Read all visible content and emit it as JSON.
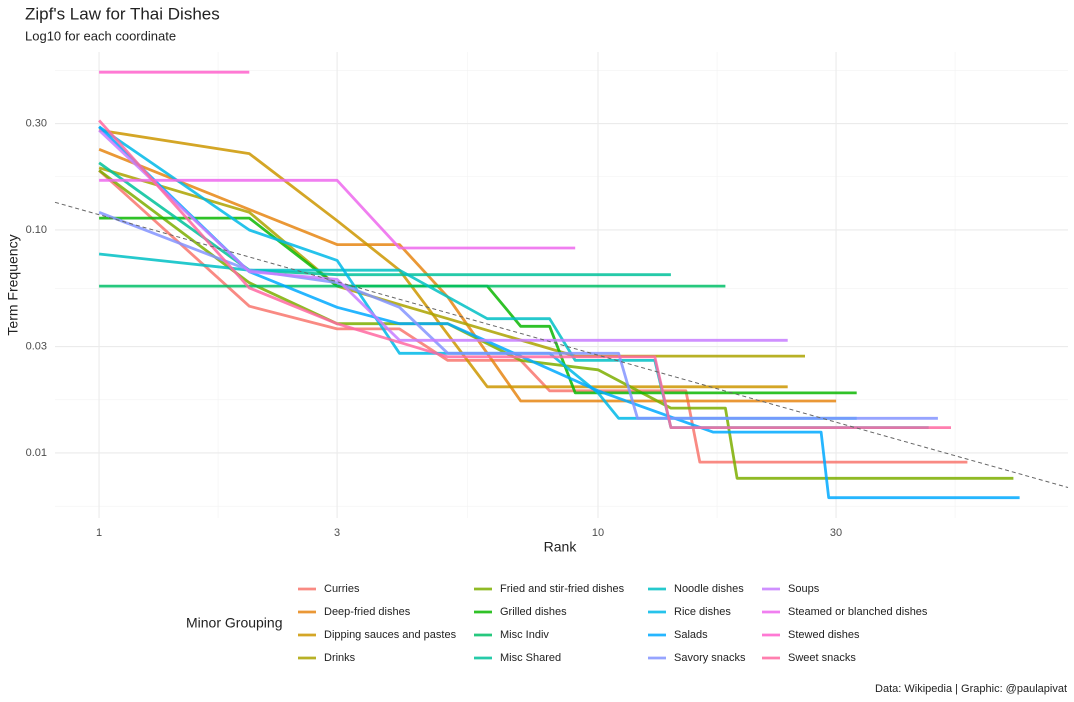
{
  "chart_data": {
    "type": "line",
    "title": "Zipf's Law for Thai Dishes",
    "subtitle": "Log10 for each coordinate",
    "x_label": "Rank",
    "y_label": "Term Frequency",
    "legend_title": "Minor Grouping",
    "caption": "Data: Wikipedia | Graphic: @paulapivat",
    "xscale": "log",
    "yscale": "log",
    "grid": true,
    "legend": "bottom",
    "xlim": [
      0.816,
      87.5
    ],
    "ylim": [
      0.00511,
      0.628
    ],
    "xticks": [
      1,
      3,
      10,
      30
    ],
    "yticks": [
      {
        "value": 0.01,
        "label": "0.01"
      },
      {
        "value": 0.03,
        "label": "0.03"
      },
      {
        "value": 0.1,
        "label": "0.10"
      },
      {
        "value": 0.3,
        "label": "0.30"
      }
    ],
    "reference_line": {
      "x": [
        0.816,
        87.5
      ],
      "values": [
        0.133,
        0.007
      ],
      "color": "#666666"
    },
    "series": [
      {
        "name": "Curries",
        "color": "#F8766D",
        "x": [
          1,
          2,
          3,
          4,
          5,
          7,
          8,
          15,
          16,
          55
        ],
        "values": [
          0.185,
          0.0455,
          0.036,
          0.036,
          0.026,
          0.026,
          0.019,
          0.019,
          0.0091,
          0.0091
        ]
      },
      {
        "name": "Deep-fried dishes",
        "color": "#E68613",
        "x": [
          1,
          3,
          4,
          5,
          7,
          30
        ],
        "values": [
          0.23,
          0.086,
          0.086,
          0.05,
          0.0171,
          0.0171
        ]
      },
      {
        "name": "Dipping sauces and pastes",
        "color": "#CD9600",
        "x": [
          1,
          2,
          3,
          4,
          6,
          24
        ],
        "values": [
          0.28,
          0.22,
          0.11,
          0.066,
          0.0198,
          0.0198
        ]
      },
      {
        "name": "Drinks",
        "color": "#ABA300",
        "x": [
          1,
          2,
          3,
          5,
          9,
          26
        ],
        "values": [
          0.19,
          0.12,
          0.056,
          0.04,
          0.0272,
          0.0272
        ]
      },
      {
        "name": "Fried and stir-fried dishes",
        "color": "#7CAE00",
        "x": [
          1,
          2,
          3,
          5,
          7,
          10,
          14,
          18,
          19,
          68
        ],
        "values": [
          0.185,
          0.058,
          0.038,
          0.038,
          0.026,
          0.0236,
          0.0159,
          0.0159,
          0.0077,
          0.0077
        ]
      },
      {
        "name": "Grilled dishes",
        "color": "#0CB702",
        "x": [
          1,
          2,
          3,
          6,
          7,
          8,
          9,
          33
        ],
        "values": [
          0.113,
          0.113,
          0.056,
          0.056,
          0.037,
          0.037,
          0.0186,
          0.0186
        ]
      },
      {
        "name": "Misc Indiv",
        "color": "#00BE67",
        "x": [
          1,
          18
        ],
        "values": [
          0.056,
          0.056
        ]
      },
      {
        "name": "Misc Shared",
        "color": "#00C19A",
        "x": [
          1,
          2,
          3,
          14
        ],
        "values": [
          0.2,
          0.066,
          0.063,
          0.063
        ]
      },
      {
        "name": "Noodle dishes",
        "color": "#00BFC4",
        "x": [
          1,
          2,
          4,
          6,
          8,
          9,
          13,
          14,
          46
        ],
        "values": [
          0.078,
          0.066,
          0.066,
          0.04,
          0.04,
          0.026,
          0.026,
          0.013,
          0.013
        ]
      },
      {
        "name": "Rice dishes",
        "color": "#00B8E7",
        "x": [
          1,
          2,
          3,
          4,
          8,
          10,
          11,
          33
        ],
        "values": [
          0.29,
          0.1,
          0.073,
          0.028,
          0.028,
          0.0186,
          0.0143,
          0.0143
        ]
      },
      {
        "name": "Salads",
        "color": "#00A9FF",
        "x": [
          1,
          2,
          3,
          4,
          5,
          10,
          17,
          28,
          29,
          70
        ],
        "values": [
          0.29,
          0.065,
          0.045,
          0.038,
          0.038,
          0.019,
          0.0124,
          0.0124,
          0.0063,
          0.0063
        ]
      },
      {
        "name": "Savory snacks",
        "color": "#8494FF",
        "x": [
          1,
          2,
          3,
          4,
          5,
          11,
          12,
          48
        ],
        "values": [
          0.12,
          0.066,
          0.058,
          0.045,
          0.028,
          0.028,
          0.0143,
          0.0143
        ]
      },
      {
        "name": "Soups",
        "color": "#C77CFF",
        "x": [
          1,
          2,
          3,
          4,
          5,
          24
        ],
        "values": [
          0.28,
          0.065,
          0.06,
          0.032,
          0.032,
          0.032
        ]
      },
      {
        "name": "Steamed or blanched dishes",
        "color": "#ED68ED",
        "x": [
          1,
          3,
          4,
          9
        ],
        "values": [
          0.167,
          0.167,
          0.083,
          0.083
        ]
      },
      {
        "name": "Stewed dishes",
        "color": "#FF61CC",
        "x": [
          1,
          2
        ],
        "values": [
          0.51,
          0.51
        ]
      },
      {
        "name": "Sweet snacks",
        "color": "#FF68A1",
        "x": [
          1,
          2,
          3,
          5,
          13,
          14,
          51
        ],
        "values": [
          0.31,
          0.055,
          0.038,
          0.027,
          0.027,
          0.013,
          0.013
        ]
      }
    ]
  }
}
